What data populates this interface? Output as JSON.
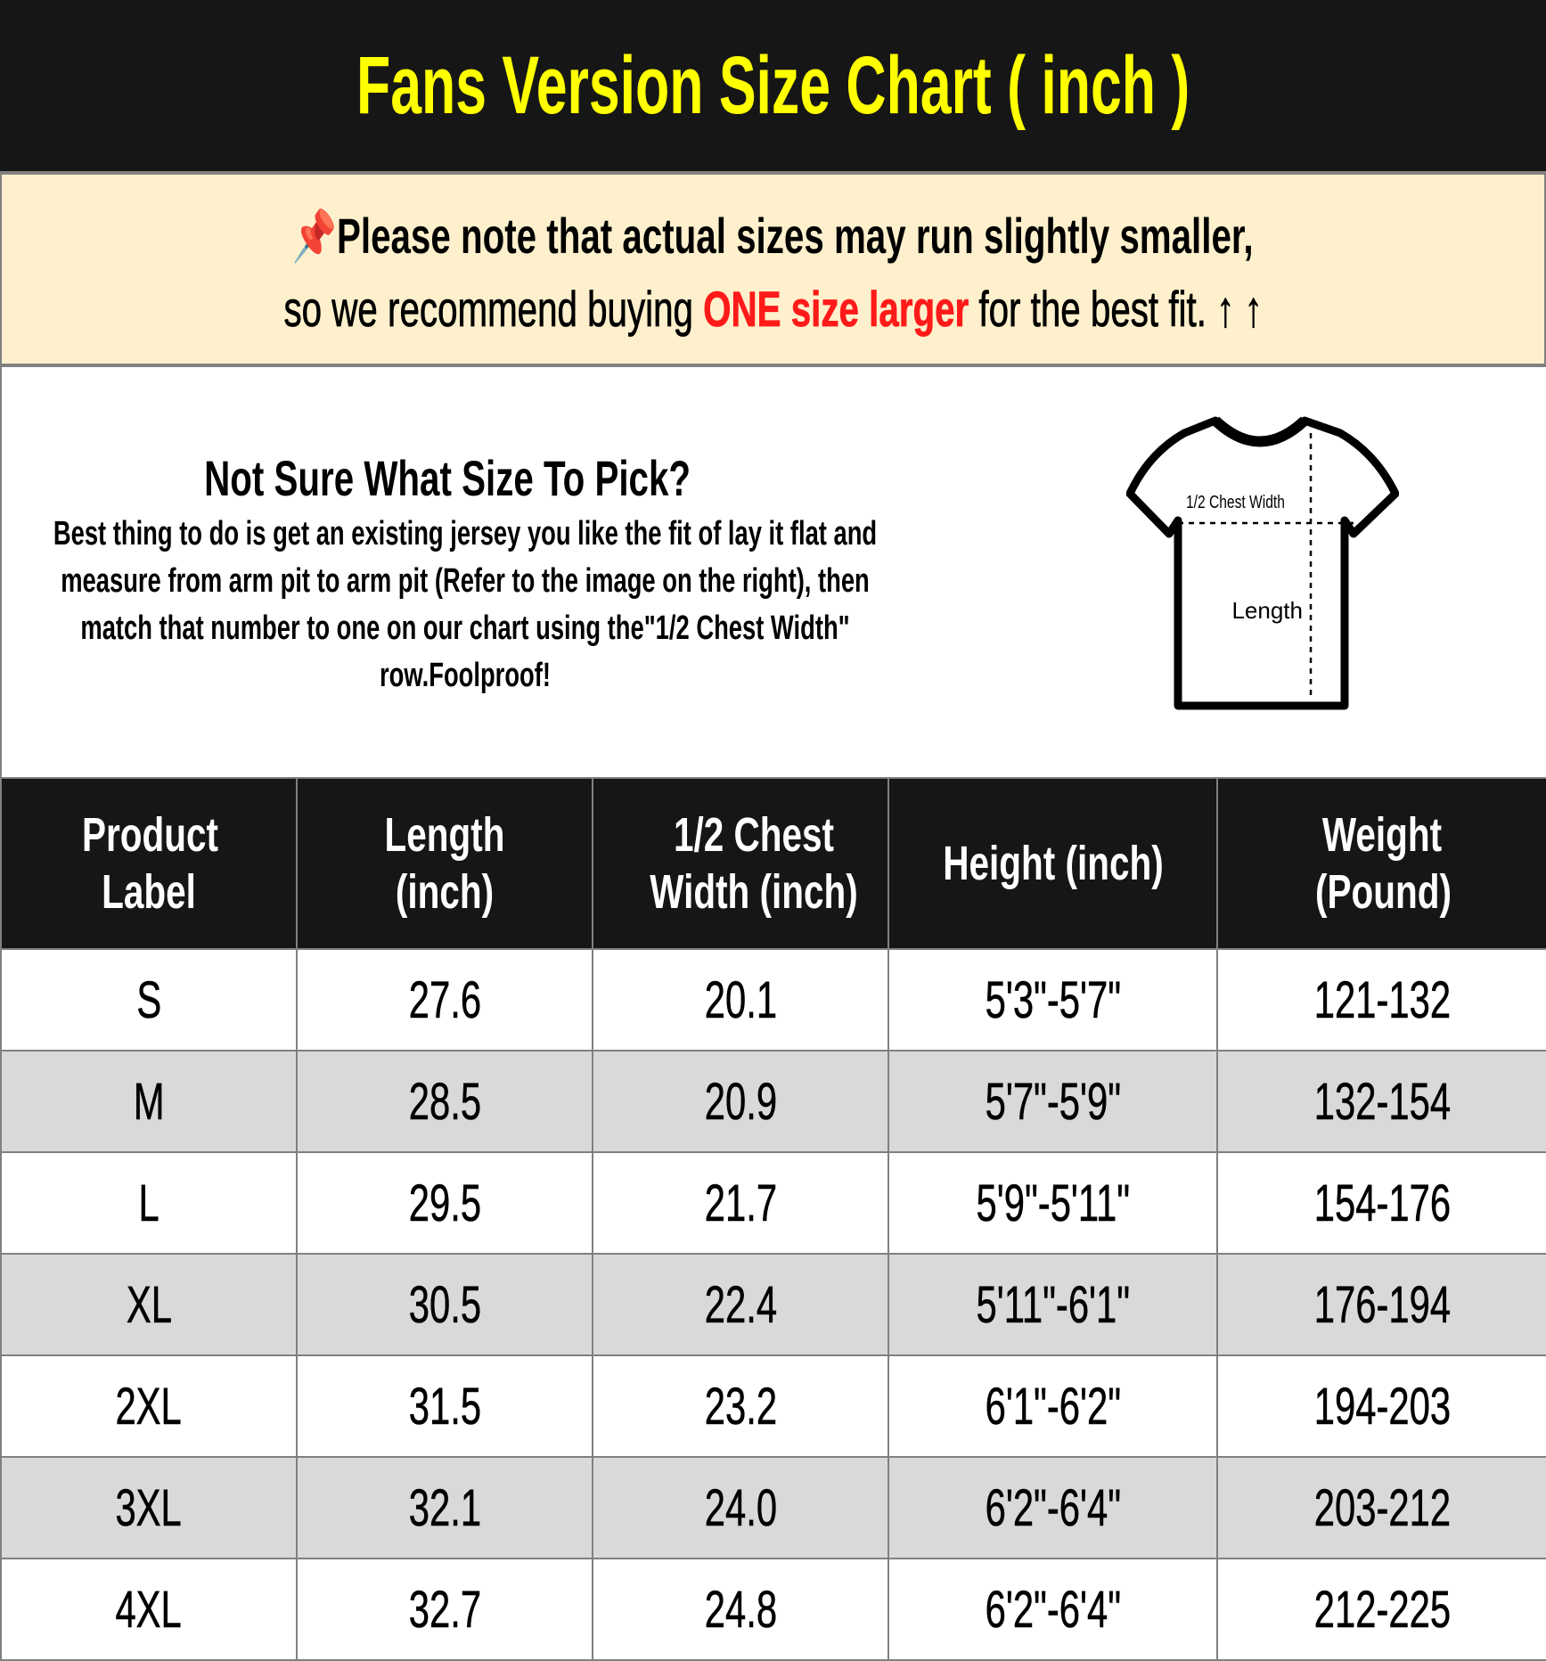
{
  "title": "Fans Version Size Chart ( inch )",
  "note": {
    "pin_icon": "pushpin-icon",
    "line1": "Please note that actual sizes may run slightly smaller,",
    "line2_pre": "so we recommend buying ",
    "line2_highlight": "ONE size larger",
    "line2_post": " for the best fit.",
    "arrows": "↑ ↑",
    "highlight_color": "#ff1a1a"
  },
  "info": {
    "heading": "Not Sure What Size To Pick?",
    "body": "Best thing to do is get an existing jersey you like the fit of lay it flat and measure from arm pit to arm pit (Refer to the image on the right), then match that number to one on our chart using the\"1/2 Chest Width\" row.Foolproof!",
    "diagram": {
      "chest_label": "1/2 Chest Width",
      "length_label": "Length"
    }
  },
  "table": {
    "headers": [
      "Product Label",
      "Length (inch)",
      "1/2 Chest Width (inch)",
      "Height (inch)",
      "Weight (Pound)"
    ],
    "rows": [
      [
        "S",
        "27.6",
        "20.1",
        "5'3\"-5'7\"",
        "121-132"
      ],
      [
        "M",
        "28.5",
        "20.9",
        "5'7\"-5'9\"",
        "132-154"
      ],
      [
        "L",
        "29.5",
        "21.7",
        "5'9\"-5'11\"",
        "154-176"
      ],
      [
        "XL",
        "30.5",
        "22.4",
        "5'11\"-6'1\"",
        "176-194"
      ],
      [
        "2XL",
        "31.5",
        "23.2",
        "6'1\"-6'2\"",
        "194-203"
      ],
      [
        "3XL",
        "32.1",
        "24.0",
        "6'2\"-6'4\"",
        "203-212"
      ],
      [
        "4XL",
        "32.7",
        "24.8",
        "6'2\"-6'4\"",
        "212-225"
      ]
    ]
  },
  "colors": {
    "title_bg": "#161616",
    "title_text": "#ffff00",
    "note_bg": "#fef0cc",
    "alt_row": "#d9d9d9"
  }
}
